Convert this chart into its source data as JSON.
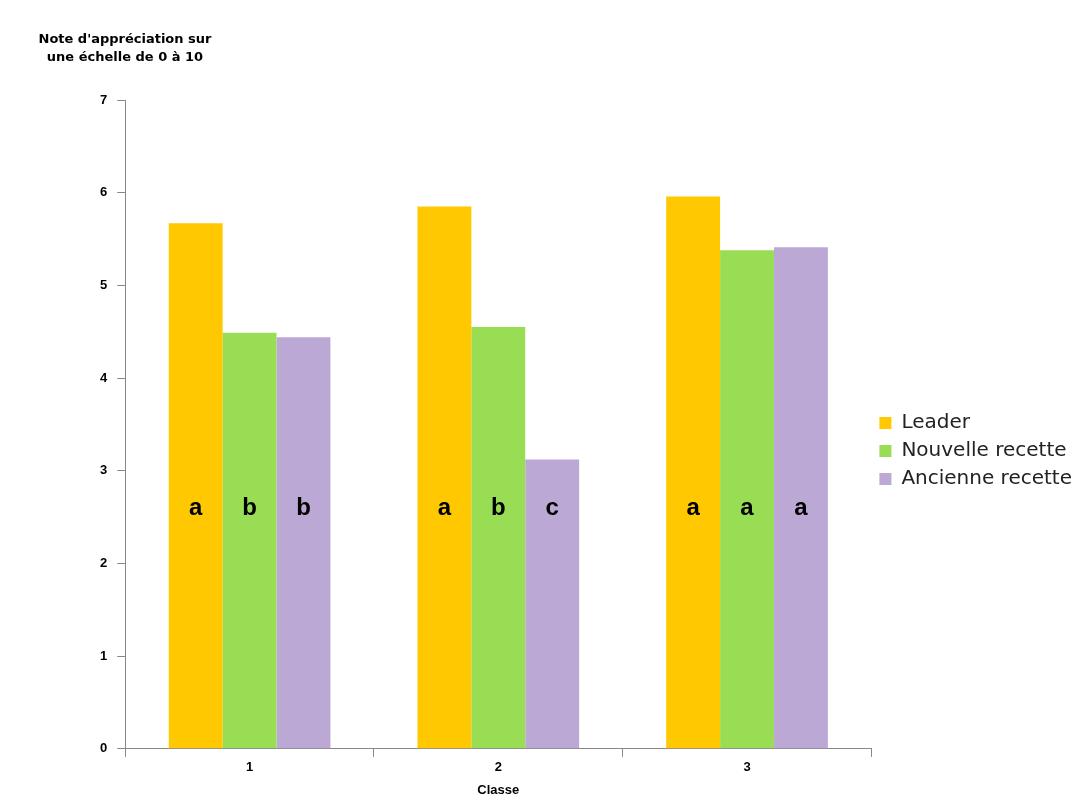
{
  "chart_data": {
    "type": "bar",
    "ylabel": "Note d'appréciation sur une échelle de 0 à 10",
    "xlabel": "Classe",
    "categories": [
      "1",
      "2",
      "3"
    ],
    "series": [
      {
        "name": "Leader",
        "color": "#ffc800",
        "values": [
          5.67,
          5.85,
          5.96
        ],
        "value_labels": [
          "a",
          "a",
          "a"
        ]
      },
      {
        "name": "Nouvelle recette",
        "color": "#99dd55",
        "values": [
          4.49,
          4.55,
          5.38
        ],
        "value_labels": [
          "b",
          "b",
          "a"
        ]
      },
      {
        "name": "Ancienne recette",
        "color": "#bba8d4",
        "values": [
          4.44,
          3.12,
          5.41
        ],
        "value_labels": [
          "b",
          "c",
          "a"
        ]
      }
    ],
    "ylim": [
      0,
      7
    ],
    "yticks": [
      0,
      1,
      2,
      3,
      4,
      5,
      6,
      7
    ],
    "grid": false,
    "legend": "right"
  }
}
